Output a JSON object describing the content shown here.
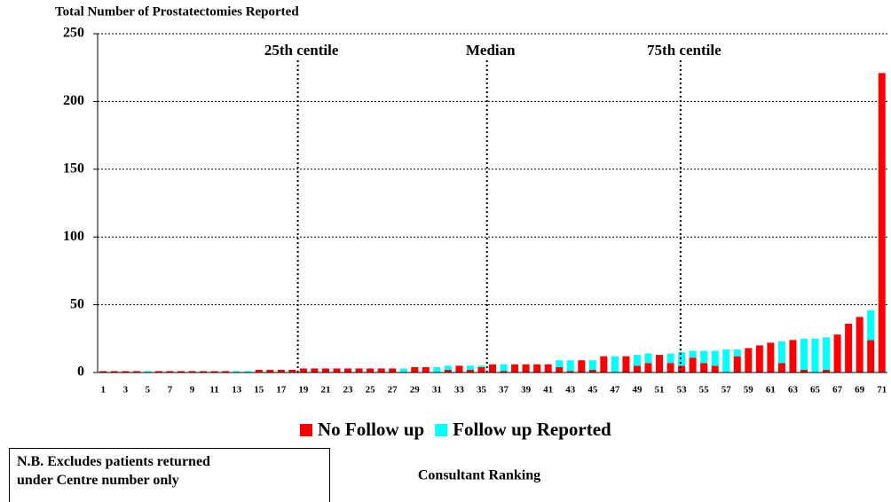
{
  "chart_data": {
    "type": "stacked_bar",
    "title": "Total  Number of Prostatectomies Reported",
    "x_label": "Consultant Ranking",
    "categories": [
      "1",
      null,
      "3",
      null,
      "5",
      null,
      "7",
      null,
      "9",
      null,
      "11",
      null,
      "13",
      null,
      "15",
      null,
      "17",
      null,
      "19",
      null,
      "21",
      null,
      "23",
      null,
      "25",
      null,
      "27",
      null,
      "29",
      null,
      "31",
      null,
      "33",
      null,
      "35",
      null,
      "37",
      null,
      "39",
      null,
      "41",
      null,
      "43",
      null,
      "45",
      null,
      "47",
      null,
      "49",
      null,
      "51",
      null,
      "53",
      null,
      "55",
      null,
      "57",
      null,
      "59",
      null,
      "61",
      null,
      "63",
      null,
      "65",
      null,
      "67",
      null,
      "69",
      null,
      "71"
    ],
    "series": [
      {
        "name": "No Follow up",
        "color": "#ff0000",
        "values": [
          1,
          1,
          1,
          1,
          0,
          1,
          1,
          1,
          1,
          1,
          1,
          1,
          0,
          0,
          2,
          2,
          2,
          2,
          3,
          3,
          3,
          3,
          3,
          3,
          3,
          3,
          3,
          0,
          4,
          4,
          0,
          2,
          5,
          2,
          4,
          6,
          1,
          6,
          6,
          6,
          6,
          4,
          1,
          9,
          2,
          12,
          0,
          12,
          5,
          7,
          13,
          7,
          5,
          11,
          7,
          5,
          0,
          12,
          18,
          20,
          22,
          7,
          24,
          2,
          0,
          2,
          28,
          36,
          41,
          24,
          221
        ]
      },
      {
        "name": "Follow up Reported",
        "color": "#00ffff",
        "values": [
          0,
          0,
          0,
          0,
          1,
          0,
          0,
          0,
          0,
          0,
          0,
          0,
          1,
          1,
          0,
          0,
          0,
          0,
          0,
          0,
          0,
          0,
          0,
          0,
          0,
          0,
          0,
          3,
          0,
          0,
          4,
          3,
          0,
          3,
          1,
          0,
          5,
          0,
          0,
          0,
          0,
          5,
          8,
          0,
          7,
          0,
          12,
          0,
          8,
          7,
          0,
          7,
          10,
          5,
          9,
          11,
          17,
          5,
          0,
          0,
          0,
          16,
          0,
          23,
          25,
          24,
          0,
          0,
          0,
          22,
          0
        ]
      }
    ],
    "ylim": [
      0,
      250
    ],
    "yticks": [
      0,
      50,
      100,
      150,
      200,
      250
    ],
    "grid": true,
    "legend": "bottom",
    "annotations": [
      {
        "label": "25th centile",
        "x": 18.5
      },
      {
        "label": "Median",
        "x": 35.5
      },
      {
        "label": "75th centile",
        "x": 52.9
      }
    ]
  },
  "note": [
    "N.B. Excludes patients returned",
    " under Centre number only"
  ]
}
